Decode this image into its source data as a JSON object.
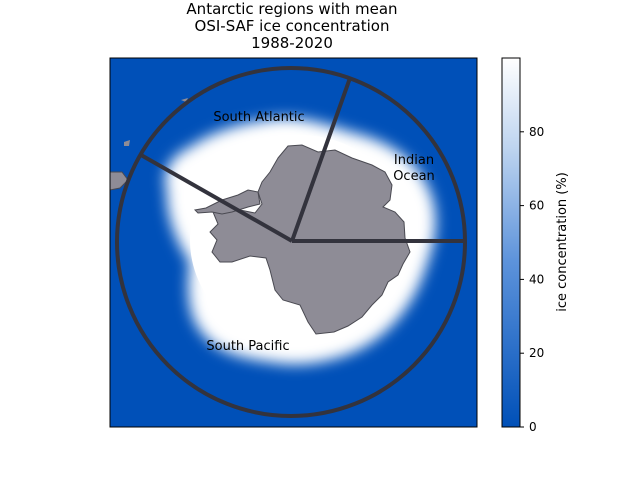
{
  "figure": {
    "title_lines": [
      "Antarctic regions with mean",
      "OSI-SAF ice concentration",
      "1988-2020"
    ]
  },
  "map": {
    "ocean_color": "#0050b8",
    "land_color": "#8e8c96",
    "boundary_color": "#33333d",
    "regions": [
      {
        "name": "south-atlantic",
        "label_lines": [
          "South Atlantic"
        ]
      },
      {
        "name": "indian-ocean",
        "label_lines": [
          "Indian",
          "Ocean"
        ]
      },
      {
        "name": "south-pacific",
        "label_lines": [
          "South Pacific"
        ]
      }
    ]
  },
  "colorbar": {
    "label": "ice concentration (%)",
    "range": [
      0,
      100
    ],
    "ticks": [
      "0",
      "20",
      "40",
      "60",
      "80"
    ],
    "colors": {
      "low": "#0050b8",
      "mid": "#5d93db",
      "high": "#ffffff"
    }
  }
}
